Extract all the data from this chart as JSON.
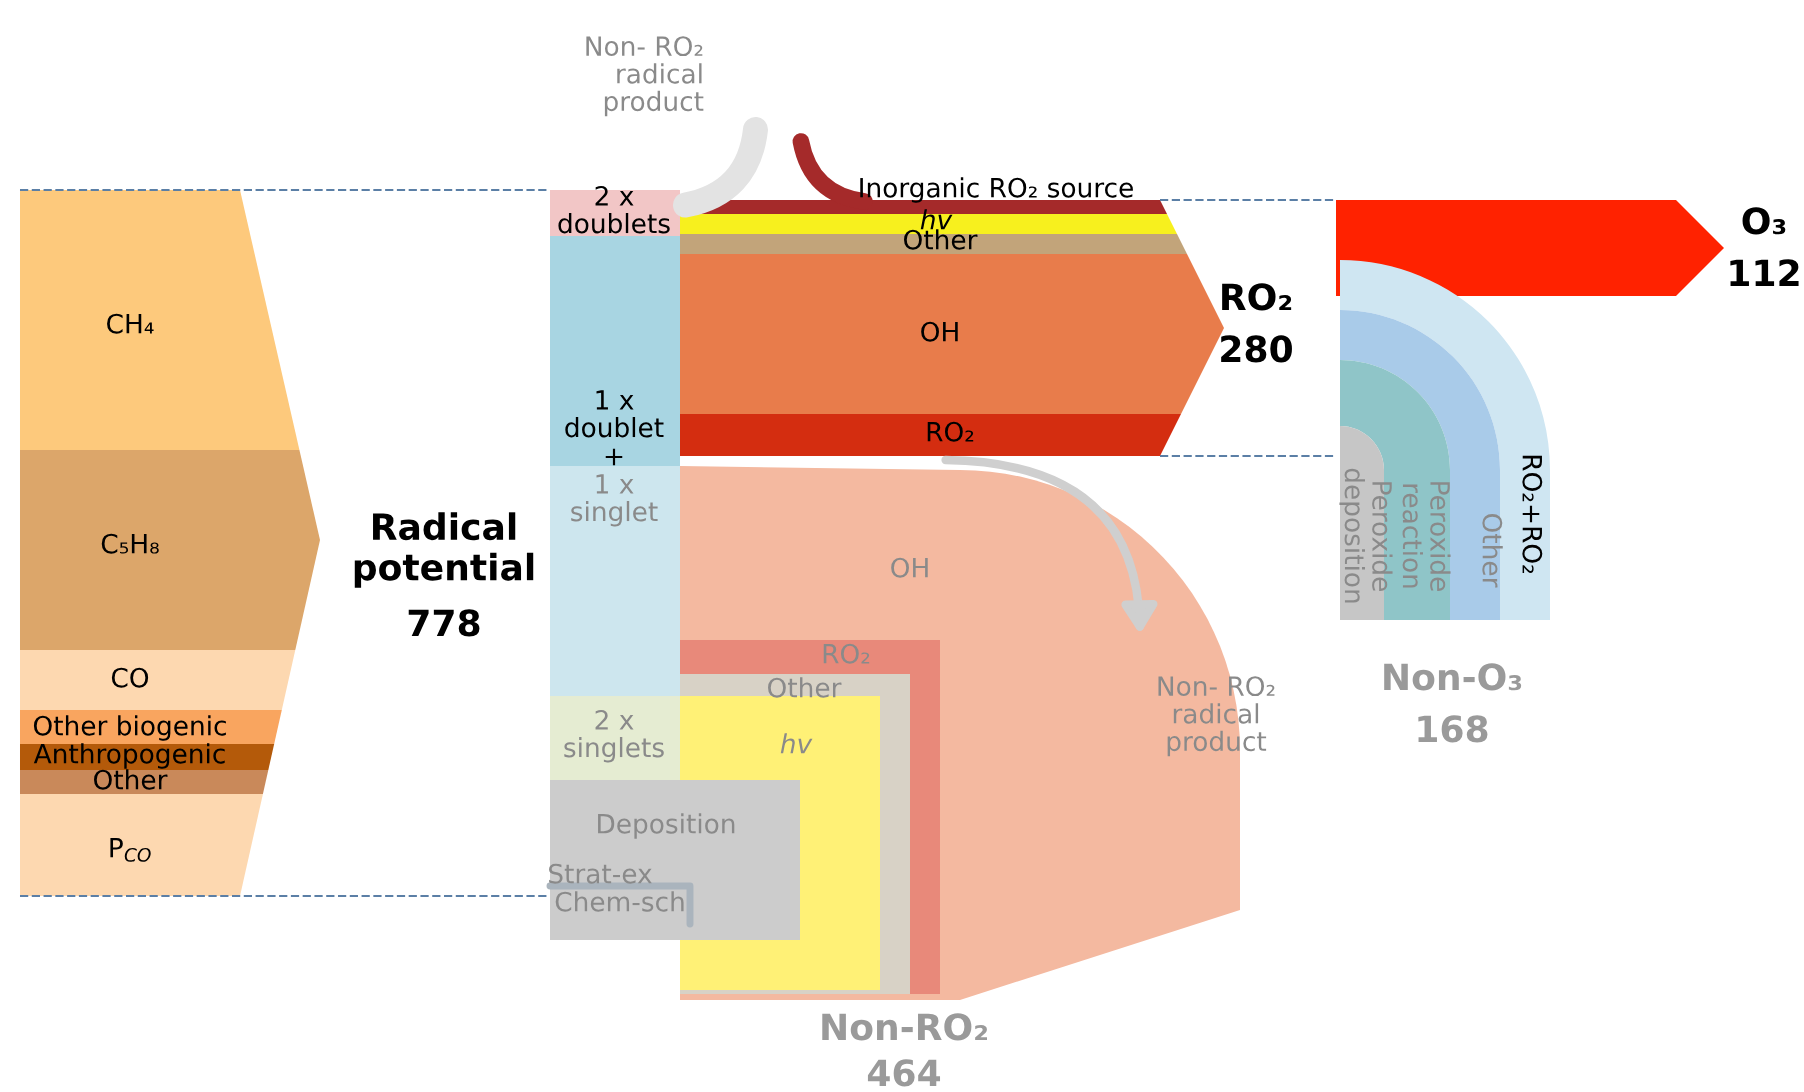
{
  "chart_data": {
    "type": "other",
    "categories": [
      "Radical\npotential",
      "RO₂",
      "O₃",
      "Non-O₃",
      "Non-RO₂"
    ],
    "values": [
      778,
      280,
      112,
      168,
      464
    ],
    "data_labels": true,
    "annotations": [
      "CH₄",
      "C₅H₈",
      "CO",
      "Other biogenic",
      "Anthropogenic",
      "Other",
      "P$_{CO}$",
      "2 x\ndoublets",
      "1 x\ndoublet",
      "+",
      "1 x\nsinglet",
      "2 x\nsinglets",
      "Deposition",
      "Strat-ex",
      "Chem-sch",
      "Inorganic RO₂ source",
      "hv",
      "Other",
      "OH",
      "RO₂",
      "OH",
      "RO₂",
      "Other",
      "hv",
      "Non- RO₂\nradical\nproduct",
      "Non- RO₂\nradical\nproduct",
      "Peroxide\ndeposition",
      "Peroxide\nreaction",
      "Other",
      "RO₂+RO₂"
    ]
  }
}
